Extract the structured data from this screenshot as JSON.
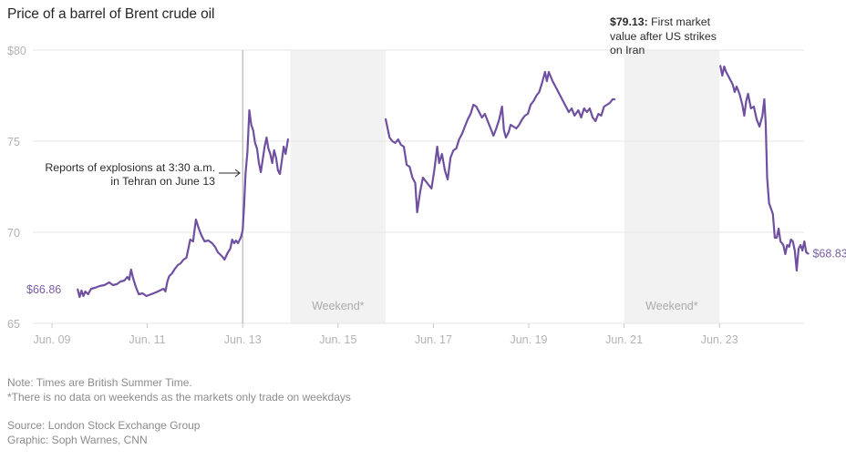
{
  "title": "Price of a barrel of Brent crude oil",
  "notes": {
    "note": "Note: Times are British Summer Time.",
    "footnote": "*There is no data on weekends as the markets only trade on weekdays",
    "source": "Source: London Stock Exchange Group",
    "credit": "Graphic: Soph Warnes, CNN"
  },
  "colors": {
    "line": "#6f4f9f",
    "label": "#7b5ea7",
    "grid": "#e6e6e6",
    "weekend": "#f2f2f2",
    "event_line": "#a6a6a6"
  },
  "chart_data": {
    "type": "line",
    "title": "Price of a barrel of Brent crude oil",
    "xlabel": "",
    "ylabel": "",
    "x_unit": "day of June 2025 (fractional, BST)",
    "xlim": [
      8.5,
      24.9
    ],
    "ylim": [
      65,
      80
    ],
    "grid": true,
    "y_ticks": [
      {
        "value": 80,
        "label": "$80"
      },
      {
        "value": 75,
        "label": "75"
      },
      {
        "value": 70,
        "label": "70"
      },
      {
        "value": 65,
        "label": "65"
      }
    ],
    "x_ticks": [
      {
        "value": 9,
        "label": "Jun. 09"
      },
      {
        "value": 11,
        "label": "Jun. 11"
      },
      {
        "value": 13,
        "label": "Jun. 13"
      },
      {
        "value": 15,
        "label": "Jun. 15"
      },
      {
        "value": 17,
        "label": "Jun. 17"
      },
      {
        "value": 19,
        "label": "Jun. 19"
      },
      {
        "value": 21,
        "label": "Jun. 21"
      },
      {
        "value": 23,
        "label": "Jun. 23"
      }
    ],
    "weekends": [
      {
        "start": 14,
        "end": 16,
        "label": "Weekend*"
      },
      {
        "start": 21,
        "end": 23,
        "label": "Weekend*"
      }
    ],
    "series": [
      {
        "name": "Brent crude",
        "segments": [
          [
            [
              9.54,
              66.86
            ],
            [
              9.58,
              66.45
            ],
            [
              9.62,
              66.8
            ],
            [
              9.66,
              66.5
            ],
            [
              9.7,
              66.75
            ],
            [
              9.76,
              66.6
            ],
            [
              9.82,
              66.9
            ],
            [
              9.9,
              66.95
            ],
            [
              10.0,
              67.05
            ],
            [
              10.1,
              67.1
            ],
            [
              10.2,
              67.25
            ],
            [
              10.28,
              67.1
            ],
            [
              10.36,
              67.15
            ],
            [
              10.44,
              67.3
            ],
            [
              10.52,
              67.35
            ],
            [
              10.58,
              67.55
            ],
            [
              10.62,
              67.4
            ],
            [
              10.66,
              67.95
            ],
            [
              10.7,
              67.5
            ],
            [
              10.76,
              67.0
            ],
            [
              10.82,
              66.6
            ],
            [
              10.9,
              66.65
            ],
            [
              10.98,
              66.5
            ],
            [
              11.08,
              66.6
            ],
            [
              11.18,
              66.7
            ],
            [
              11.26,
              66.8
            ],
            [
              11.34,
              66.9
            ],
            [
              11.38,
              66.75
            ],
            [
              11.42,
              67.3
            ],
            [
              11.46,
              67.6
            ],
            [
              11.52,
              67.75
            ],
            [
              11.58,
              68.0
            ],
            [
              11.64,
              68.2
            ],
            [
              11.7,
              68.3
            ],
            [
              11.76,
              68.5
            ],
            [
              11.82,
              68.6
            ],
            [
              11.86,
              69.1
            ],
            [
              11.9,
              69.6
            ],
            [
              11.96,
              69.5
            ],
            [
              12.02,
              70.7
            ],
            [
              12.08,
              70.2
            ],
            [
              12.14,
              69.8
            ],
            [
              12.2,
              69.5
            ],
            [
              12.28,
              69.55
            ],
            [
              12.36,
              69.4
            ],
            [
              12.42,
              69.2
            ],
            [
              12.48,
              68.9
            ],
            [
              12.56,
              68.7
            ],
            [
              12.62,
              68.5
            ],
            [
              12.68,
              68.85
            ],
            [
              12.74,
              69.1
            ],
            [
              12.78,
              69.6
            ],
            [
              12.82,
              69.4
            ],
            [
              12.86,
              69.55
            ],
            [
              12.9,
              69.4
            ],
            [
              12.96,
              69.7
            ],
            [
              13.0,
              70.1
            ],
            [
              13.03,
              71.5
            ],
            [
              13.06,
              73.2
            ],
            [
              13.1,
              74.4
            ],
            [
              13.14,
              76.7
            ],
            [
              13.18,
              75.9
            ],
            [
              13.22,
              75.6
            ],
            [
              13.26,
              74.9
            ],
            [
              13.3,
              74.6
            ],
            [
              13.34,
              73.8
            ],
            [
              13.38,
              73.3
            ],
            [
              13.42,
              74.0
            ],
            [
              13.46,
              74.7
            ],
            [
              13.5,
              75.2
            ],
            [
              13.54,
              74.6
            ],
            [
              13.58,
              74.3
            ],
            [
              13.62,
              73.8
            ],
            [
              13.66,
              74.5
            ],
            [
              13.7,
              74.1
            ],
            [
              13.74,
              73.4
            ],
            [
              13.78,
              73.2
            ],
            [
              13.82,
              73.9
            ],
            [
              13.86,
              74.7
            ],
            [
              13.9,
              74.3
            ],
            [
              13.95,
              75.1
            ]
          ],
          [
            [
              16.0,
              76.2
            ],
            [
              16.04,
              75.7
            ],
            [
              16.08,
              75.2
            ],
            [
              16.14,
              75.0
            ],
            [
              16.2,
              74.9
            ],
            [
              16.26,
              75.1
            ],
            [
              16.32,
              74.8
            ],
            [
              16.38,
              74.7
            ],
            [
              16.44,
              73.7
            ],
            [
              16.5,
              73.6
            ],
            [
              16.56,
              73.0
            ],
            [
              16.62,
              72.7
            ],
            [
              16.66,
              71.1
            ],
            [
              16.72,
              72.2
            ],
            [
              16.78,
              73.0
            ],
            [
              16.84,
              72.8
            ],
            [
              16.9,
              72.6
            ],
            [
              16.96,
              72.4
            ],
            [
              17.02,
              73.4
            ],
            [
              17.08,
              74.7
            ],
            [
              17.12,
              73.8
            ],
            [
              17.18,
              74.3
            ],
            [
              17.24,
              73.4
            ],
            [
              17.3,
              72.9
            ],
            [
              17.36,
              74.1
            ],
            [
              17.42,
              74.5
            ],
            [
              17.48,
              74.6
            ],
            [
              17.54,
              75.1
            ],
            [
              17.6,
              75.4
            ],
            [
              17.66,
              75.8
            ],
            [
              17.72,
              76.2
            ],
            [
              17.78,
              76.5
            ],
            [
              17.84,
              77.0
            ],
            [
              17.9,
              76.9
            ],
            [
              17.96,
              76.6
            ],
            [
              18.02,
              76.3
            ],
            [
              18.08,
              76.5
            ],
            [
              18.14,
              76.1
            ],
            [
              18.2,
              75.7
            ],
            [
              18.26,
              75.3
            ],
            [
              18.32,
              75.7
            ],
            [
              18.38,
              76.2
            ],
            [
              18.44,
              76.9
            ],
            [
              18.48,
              75.6
            ],
            [
              18.52,
              75.2
            ],
            [
              18.58,
              75.5
            ],
            [
              18.62,
              75.9
            ],
            [
              18.68,
              75.8
            ],
            [
              18.74,
              75.7
            ],
            [
              18.8,
              75.9
            ],
            [
              18.86,
              76.2
            ],
            [
              18.92,
              76.4
            ],
            [
              18.98,
              76.5
            ],
            [
              19.04,
              77.0
            ],
            [
              19.1,
              77.2
            ],
            [
              19.16,
              77.5
            ],
            [
              19.22,
              77.7
            ],
            [
              19.28,
              78.2
            ],
            [
              19.34,
              78.8
            ],
            [
              19.38,
              78.3
            ],
            [
              19.42,
              78.8
            ],
            [
              19.5,
              78.3
            ],
            [
              19.6,
              77.8
            ],
            [
              19.7,
              77.3
            ],
            [
              19.78,
              76.9
            ],
            [
              19.84,
              76.6
            ],
            [
              19.9,
              76.8
            ],
            [
              19.96,
              76.4
            ],
            [
              20.04,
              76.7
            ],
            [
              20.1,
              76.3
            ],
            [
              20.16,
              76.8
            ],
            [
              20.22,
              76.6
            ],
            [
              20.28,
              76.8
            ],
            [
              20.34,
              76.3
            ],
            [
              20.4,
              76.1
            ],
            [
              20.46,
              76.5
            ],
            [
              20.52,
              76.4
            ],
            [
              20.58,
              76.9
            ],
            [
              20.64,
              77.0
            ],
            [
              20.7,
              77.1
            ],
            [
              20.76,
              77.3
            ],
            [
              20.8,
              77.3
            ]
          ],
          [
            [
              23.02,
              79.13
            ],
            [
              23.06,
              78.6
            ],
            [
              23.1,
              79.1
            ],
            [
              23.14,
              78.8
            ],
            [
              23.2,
              78.5
            ],
            [
              23.24,
              78.3
            ],
            [
              23.28,
              78.1
            ],
            [
              23.32,
              77.7
            ],
            [
              23.36,
              78.0
            ],
            [
              23.42,
              77.6
            ],
            [
              23.48,
              77.0
            ],
            [
              23.52,
              76.4
            ],
            [
              23.56,
              77.2
            ],
            [
              23.6,
              77.6
            ],
            [
              23.66,
              76.8
            ],
            [
              23.72,
              76.9
            ],
            [
              23.78,
              76.2
            ],
            [
              23.84,
              75.8
            ],
            [
              23.9,
              76.4
            ],
            [
              23.94,
              77.3
            ],
            [
              23.97,
              76.0
            ],
            [
              24.0,
              73.0
            ],
            [
              24.04,
              71.6
            ],
            [
              24.08,
              71.3
            ],
            [
              24.12,
              71.0
            ],
            [
              24.16,
              69.7
            ],
            [
              24.2,
              69.7
            ],
            [
              24.24,
              70.2
            ],
            [
              24.28,
              69.5
            ],
            [
              24.34,
              69.3
            ],
            [
              24.38,
              68.8
            ],
            [
              24.42,
              69.3
            ],
            [
              24.46,
              69.2
            ],
            [
              24.5,
              69.6
            ],
            [
              24.54,
              69.5
            ],
            [
              24.58,
              69.0
            ],
            [
              24.62,
              67.9
            ],
            [
              24.66,
              69.1
            ],
            [
              24.7,
              69.3
            ],
            [
              24.74,
              69.0
            ],
            [
              24.78,
              69.5
            ],
            [
              24.82,
              68.9
            ],
            [
              24.86,
              68.83
            ]
          ]
        ]
      }
    ],
    "annotations": [
      {
        "type": "event-line",
        "x": 13.0,
        "text_lines": [
          "Reports of explosions at 3:30 a.m.",
          "in Tehran on June 13"
        ]
      },
      {
        "type": "label",
        "bold": "$79.13:",
        "text_lines": [
          "First market",
          "value after US strikes",
          "on Iran"
        ]
      },
      {
        "type": "start-value",
        "value": 66.86,
        "label": "$66.86"
      },
      {
        "type": "end-value",
        "value": 68.83,
        "label": "$68.83"
      }
    ]
  }
}
